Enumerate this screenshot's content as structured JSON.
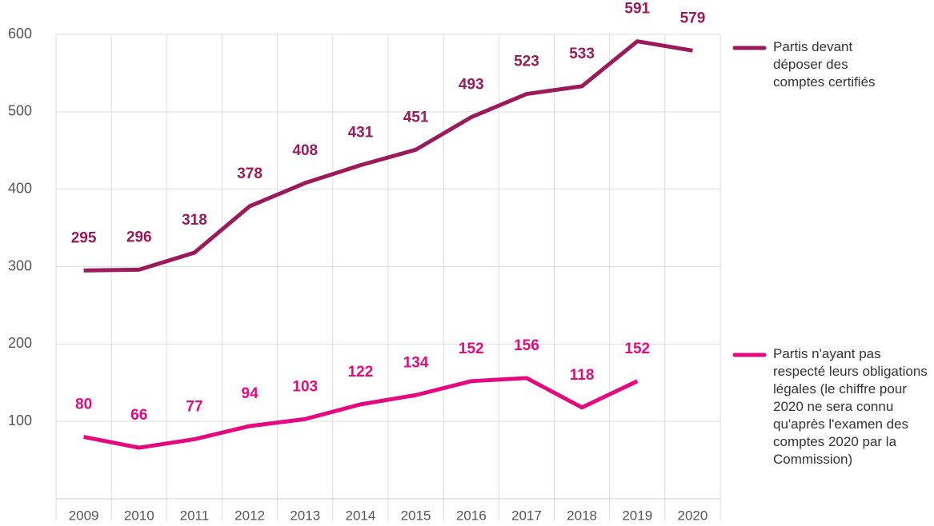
{
  "chart_data": {
    "type": "line",
    "categories": [
      "2009",
      "2010",
      "2011",
      "2012",
      "2013",
      "2014",
      "2015",
      "2016",
      "2017",
      "2018",
      "2019",
      "2020"
    ],
    "series": [
      {
        "name": "Partis devant déposer des comptes certifiés",
        "color": "#9b1a5a",
        "values": [
          295,
          296,
          318,
          378,
          408,
          431,
          451,
          493,
          523,
          533,
          591,
          579
        ]
      },
      {
        "name": "Partis n'ayant pas respecté leurs obligations légales (le chiffre pour 2020 ne sera connu qu'après l'examen des comptes 2020 par la Commission)",
        "color": "#e5097f",
        "values": [
          80,
          66,
          77,
          94,
          103,
          122,
          134,
          152,
          156,
          118,
          152,
          null
        ]
      }
    ],
    "ylim": [
      0,
      600
    ],
    "yticks": [
      100,
      200,
      300,
      400,
      500,
      600
    ],
    "grid": true
  }
}
